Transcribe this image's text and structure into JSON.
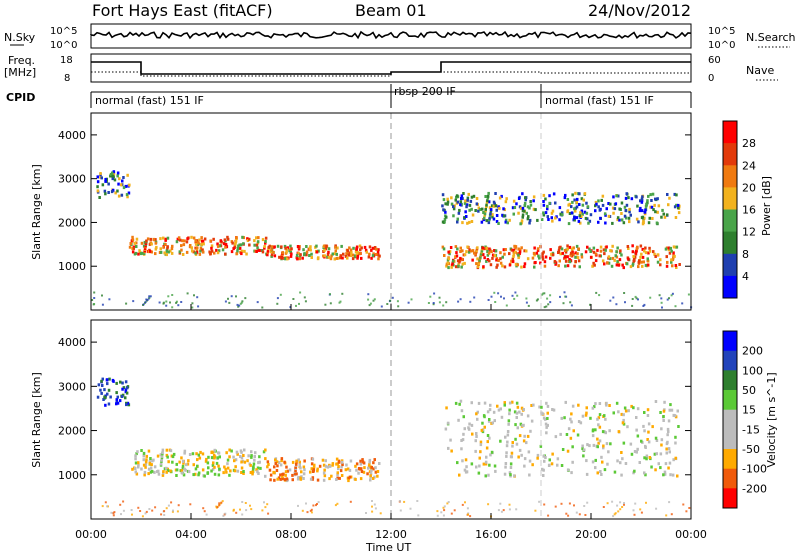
{
  "header": {
    "station": "Fort Hays East (fitACF)",
    "beam": "Beam 01",
    "date": "24/Nov/2012"
  },
  "strip_labels": {
    "nsky": "N.Sky",
    "nsky_ticks": [
      "10^5",
      "10^0"
    ],
    "nsearch": "N.Search",
    "nsearch_ticks": [
      "10^5",
      "10^0"
    ],
    "freq": "Freq.",
    "freq_unit": "[MHz]",
    "freq_ticks": [
      "18",
      "8"
    ],
    "nave": "Nave",
    "nave_ticks": [
      "60",
      "0"
    ],
    "cpid": "CPID"
  },
  "cpid_segments": [
    {
      "label": "normal (fast) 151 IF",
      "start_hour": 0,
      "end_hour": 12
    },
    {
      "label": "rbsp 200 IF",
      "start_hour": 12,
      "end_hour": 18
    },
    {
      "label": "normal (fast) 151 IF",
      "start_hour": 18,
      "end_hour": 24
    }
  ],
  "x_axis": {
    "label": "Time UT",
    "ticks": [
      "00:00",
      "04:00",
      "08:00",
      "12:00",
      "16:00",
      "20:00",
      "00:00"
    ],
    "range_hours": [
      0,
      24
    ]
  },
  "colors": {
    "power": [
      "#0000ff",
      "#1f3fb0",
      "#2e7f2e",
      "#49a449",
      "#f2b21e",
      "#f07a10",
      "#e33a0a",
      "#ff0000"
    ],
    "velocity": [
      "#ff0000",
      "#f05a0a",
      "#ffaa00",
      "#bcbcbc",
      "#bcbcbc",
      "#5bc936",
      "#2e7f2e",
      "#2244bb",
      "#0000ff"
    ]
  },
  "chart_data": [
    {
      "type": "heatmap",
      "panel": "power",
      "ylabel": "Slant Range [km]",
      "yticks": [
        "1000",
        "2000",
        "3000",
        "4000"
      ],
      "ylim": [
        0,
        4500
      ],
      "colorbar_label": "Power [dB]",
      "colorbar_ticks": [
        "4",
        "8",
        "12",
        "16",
        "20",
        "24",
        "28"
      ],
      "colorbar_range": [
        0,
        32
      ],
      "features": [
        {
          "start_hour": 0.2,
          "end_hour": 1.5,
          "range_km": [
            2600,
            3200
          ],
          "level": "mid"
        },
        {
          "start_hour": 1.5,
          "end_hour": 7.0,
          "range_km": [
            1300,
            1700
          ],
          "level": "high"
        },
        {
          "start_hour": 7.0,
          "end_hour": 11.5,
          "range_km": [
            1200,
            1500
          ],
          "level": "high"
        },
        {
          "start_hour": 14.0,
          "end_hour": 23.5,
          "range_km": [
            1000,
            1500
          ],
          "level": "high"
        },
        {
          "start_hour": 14.0,
          "end_hour": 23.5,
          "range_km": [
            2000,
            2700
          ],
          "level": "mid"
        }
      ]
    },
    {
      "type": "heatmap",
      "panel": "velocity",
      "ylabel": "Slant Range [km]",
      "yticks": [
        "1000",
        "2000",
        "3000",
        "4000"
      ],
      "ylim": [
        0,
        4500
      ],
      "colorbar_label": "Velocity [m s^-1]",
      "colorbar_ticks": [
        "200",
        "100",
        "50",
        "15",
        "-15",
        "-50",
        "-100",
        "-200"
      ],
      "colorbar_range": [
        -250,
        250
      ],
      "features": [
        {
          "start_hour": 0.2,
          "end_hour": 1.5,
          "range_km": [
            2600,
            3200
          ],
          "level": "positive"
        },
        {
          "start_hour": 1.5,
          "end_hour": 7.0,
          "range_km": [
            1000,
            1600
          ],
          "level": "weak"
        },
        {
          "start_hour": 7.0,
          "end_hour": 11.5,
          "range_km": [
            900,
            1400
          ],
          "level": "negative"
        },
        {
          "start_hour": 14.0,
          "end_hour": 23.5,
          "range_km": [
            1000,
            2700
          ],
          "level": "near-zero"
        }
      ]
    }
  ]
}
